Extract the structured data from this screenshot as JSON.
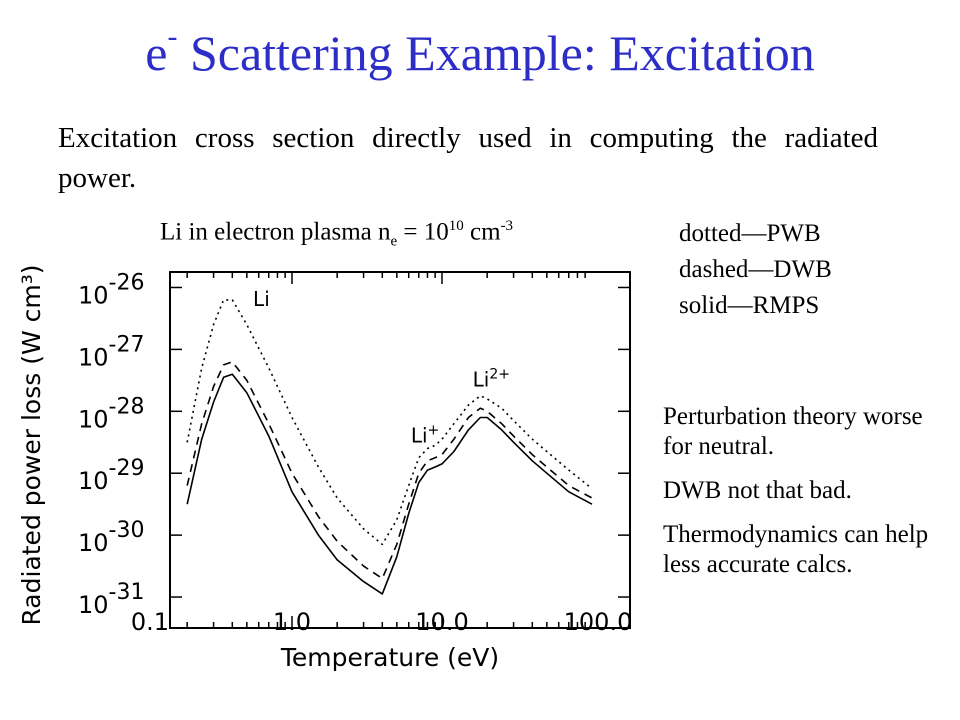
{
  "slide": {
    "title_base": "e",
    "title_sup": "-",
    "title_rest": " Scattering Example: Excitation",
    "intro": "Excitation cross section directly used in computing the radiated power.",
    "caption": {
      "lead": "Li in electron plasma n",
      "sub": "e",
      "mid": " = 10",
      "exp1": "10",
      "unit": " cm",
      "exp2": "-3"
    },
    "legend": [
      "dotted—PWB",
      "dashed—DWB",
      "solid—RMPS"
    ],
    "notes": [
      "Perturbation theory worse for neutral.",
      "DWB not that bad.",
      "Thermodynamics can help less accurate calcs."
    ]
  },
  "chart_data": {
    "type": "line",
    "xlabel": "Temperature (eV)",
    "ylabel": "Radiated power loss (W cm³)",
    "x_scale": "log",
    "y_scale": "log",
    "xlim": [
      0.2,
      100.0
    ],
    "ylim_log10": [
      -31.5,
      -25.75
    ],
    "x_ticks": [
      {
        "value": 0.1,
        "label": "0.1"
      },
      {
        "value": 1.0,
        "label": "1.0"
      },
      {
        "value": 10.0,
        "label": "10.0"
      },
      {
        "value": 100.0,
        "label": "100.0"
      }
    ],
    "y_ticks": [
      {
        "exp": -26,
        "base": "10",
        "label": "-26"
      },
      {
        "exp": -27,
        "base": "10",
        "label": "-27"
      },
      {
        "exp": -28,
        "base": "10",
        "label": "-28"
      },
      {
        "exp": -29,
        "base": "10",
        "label": "-29"
      },
      {
        "exp": -30,
        "base": "10",
        "label": "-30"
      },
      {
        "exp": -31,
        "base": "10",
        "label": "-31"
      }
    ],
    "annotations": [
      {
        "text": "Li",
        "sup": "",
        "x": 0.55,
        "y": -26.3
      },
      {
        "text": "Li",
        "sup": "2+",
        "x": 16.0,
        "y": -27.6
      },
      {
        "text": "Li",
        "sup": "+",
        "x": 6.2,
        "y": -28.5
      }
    ],
    "series": [
      {
        "style": "dotted",
        "x": [
          0.2,
          0.25,
          0.3,
          0.35,
          0.4,
          0.5,
          0.7,
          1.0,
          1.5,
          2.0,
          3.0,
          4.0,
          5.0,
          6.0,
          7.0,
          8.0,
          9.0,
          10.0,
          12.0,
          15.0,
          18.0,
          20.0,
          25.0,
          30.0,
          40.0,
          50.0,
          70.0,
          100.0
        ],
        "y": [
          -28.5,
          -27.3,
          -26.6,
          -26.2,
          -26.2,
          -26.6,
          -27.3,
          -28.1,
          -28.9,
          -29.4,
          -29.9,
          -30.15,
          -29.75,
          -29.2,
          -28.75,
          -28.6,
          -28.55,
          -28.45,
          -28.2,
          -27.9,
          -27.75,
          -27.8,
          -27.95,
          -28.15,
          -28.45,
          -28.65,
          -28.95,
          -29.25
        ]
      },
      {
        "style": "dashed",
        "x": [
          0.2,
          0.25,
          0.3,
          0.35,
          0.4,
          0.5,
          0.7,
          1.0,
          1.5,
          2.0,
          3.0,
          4.0,
          5.0,
          6.0,
          7.0,
          8.0,
          9.0,
          10.0,
          12.0,
          15.0,
          18.0,
          20.0,
          25.0,
          30.0,
          40.0,
          50.0,
          70.0,
          100.0
        ],
        "y": [
          -29.2,
          -28.2,
          -27.6,
          -27.25,
          -27.2,
          -27.5,
          -28.2,
          -29.0,
          -29.7,
          -30.1,
          -30.5,
          -30.7,
          -30.15,
          -29.5,
          -29.0,
          -28.8,
          -28.75,
          -28.7,
          -28.45,
          -28.1,
          -27.95,
          -28.0,
          -28.2,
          -28.4,
          -28.7,
          -28.9,
          -29.2,
          -29.4
        ]
      },
      {
        "style": "solid",
        "x": [
          0.2,
          0.25,
          0.3,
          0.35,
          0.4,
          0.5,
          0.7,
          1.0,
          1.5,
          2.0,
          3.0,
          4.0,
          5.0,
          6.0,
          7.0,
          8.0,
          9.0,
          10.0,
          12.0,
          15.0,
          18.0,
          20.0,
          25.0,
          30.0,
          40.0,
          50.0,
          70.0,
          100.0
        ],
        "y": [
          -29.5,
          -28.45,
          -27.85,
          -27.45,
          -27.4,
          -27.7,
          -28.4,
          -29.3,
          -30.0,
          -30.4,
          -30.75,
          -30.95,
          -30.35,
          -29.65,
          -29.15,
          -28.95,
          -28.9,
          -28.85,
          -28.65,
          -28.3,
          -28.1,
          -28.1,
          -28.3,
          -28.5,
          -28.8,
          -29.0,
          -29.3,
          -29.5
        ]
      }
    ]
  }
}
